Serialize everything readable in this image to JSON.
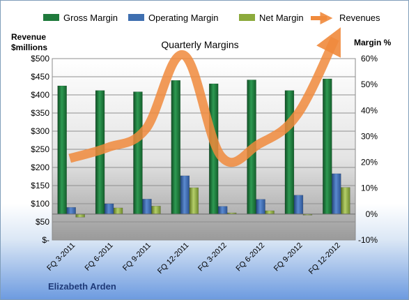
{
  "company_label": "Elizabeth Arden",
  "chart_data": {
    "type": "bar",
    "title": "Quarterly Margins",
    "categories": [
      "FQ 3-2011",
      "FQ 6-2011",
      "FQ 9-2011",
      "FQ 12-2011",
      "FQ 3-2012",
      "FQ 6-2012",
      "FQ 9-2012",
      "FQ 12-2012"
    ],
    "series": [
      {
        "name": "Gross Margin",
        "type": "bar",
        "axis": "right",
        "color": "#1f7a3c",
        "values": [
          49.5,
          47.7,
          47.2,
          51.6,
          50.3,
          51.8,
          47.7,
          52.2
        ]
      },
      {
        "name": "Operating Margin",
        "type": "bar",
        "axis": "right",
        "color": "#3f6fb0",
        "values": [
          2.6,
          4.0,
          5.8,
          14.8,
          3.0,
          5.7,
          7.3,
          15.6
        ]
      },
      {
        "name": "Net Margin",
        "type": "bar",
        "axis": "right",
        "color": "#8caa3c",
        "values": [
          -1.2,
          2.4,
          3.1,
          10.2,
          0.5,
          1.3,
          0.0,
          10.3
        ]
      },
      {
        "name": "Revenues",
        "type": "line",
        "axis": "left",
        "color": "#f08a3c",
        "values": [
          225,
          255,
          305,
          510,
          230,
          265,
          345,
          555
        ]
      }
    ],
    "y_left": {
      "label": "Revenue\n$millions",
      "ylim": [
        0,
        500
      ],
      "ticks": [
        "$-",
        "$50",
        "$100",
        "$150",
        "$200",
        "$250",
        "$300",
        "$350",
        "$400",
        "$450",
        "$500"
      ]
    },
    "y_right": {
      "label": "Margin %",
      "ylim": [
        -10,
        60
      ],
      "ticks": [
        "-10%",
        "0%",
        "10%",
        "20%",
        "30%",
        "40%",
        "50%",
        "60%"
      ]
    },
    "legend_position": "top",
    "grid": true
  }
}
